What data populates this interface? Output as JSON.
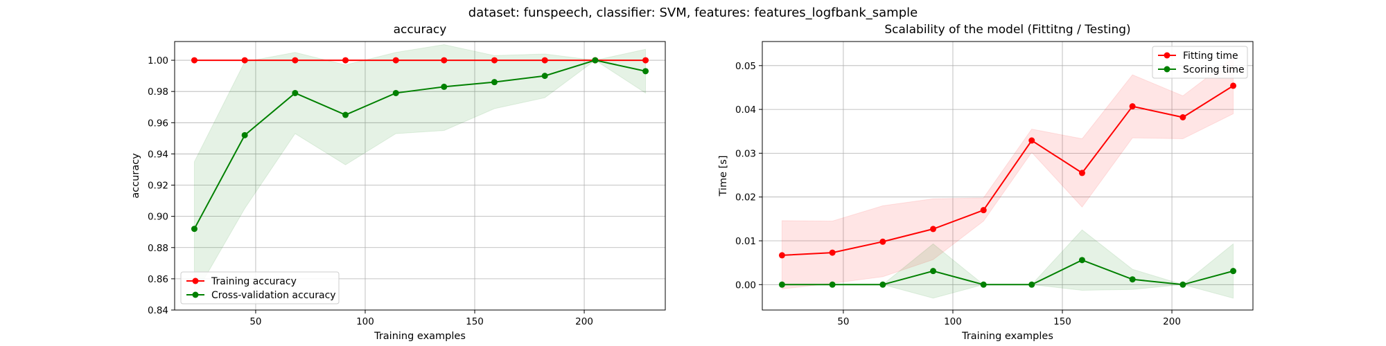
{
  "figure": {
    "suptitle": "dataset: funspeech, classifier: SVM, features: features_logfbank_sample"
  },
  "chart_data": [
    {
      "type": "line",
      "title": "accuracy",
      "xlabel": "Training examples",
      "ylabel": "accuracy",
      "xlim": [
        13,
        237
      ],
      "ylim": [
        0.84,
        1.012
      ],
      "xticks": [
        50,
        100,
        150,
        200
      ],
      "yticks": [
        0.84,
        0.86,
        0.88,
        0.9,
        0.92,
        0.94,
        0.96,
        0.98,
        1.0
      ],
      "ytick_labels": [
        "0.84",
        "0.86",
        "0.88",
        "0.90",
        "0.92",
        "0.94",
        "0.96",
        "0.98",
        "1.00"
      ],
      "grid": true,
      "legend_position": "lower-left",
      "x": [
        22,
        45,
        68,
        91,
        114,
        136,
        159,
        182,
        205,
        228
      ],
      "series": [
        {
          "name": "Training accuracy",
          "color": "#ff0000",
          "values": [
            1.0,
            1.0,
            1.0,
            1.0,
            1.0,
            1.0,
            1.0,
            1.0,
            1.0,
            1.0
          ],
          "band_low": [
            1.0,
            1.0,
            1.0,
            1.0,
            1.0,
            1.0,
            1.0,
            1.0,
            1.0,
            1.0
          ],
          "band_high": [
            1.0,
            1.0,
            1.0,
            1.0,
            1.0,
            1.0,
            1.0,
            1.0,
            1.0,
            1.0
          ],
          "band_color": "#ff0000"
        },
        {
          "name": "Cross-validation accuracy",
          "color": "#008000",
          "values": [
            0.892,
            0.952,
            0.979,
            0.965,
            0.979,
            0.983,
            0.986,
            0.99,
            1.0,
            0.993
          ],
          "band_low": [
            0.849,
            0.905,
            0.953,
            0.933,
            0.953,
            0.955,
            0.969,
            0.976,
            1.0,
            0.979
          ],
          "band_high": [
            0.935,
            0.999,
            1.005,
            0.997,
            1.005,
            1.01,
            1.003,
            1.004,
            1.0,
            1.007
          ],
          "band_color": "#008000"
        }
      ]
    },
    {
      "type": "line",
      "title": "Scalability of the model (Fittitng / Testing)",
      "xlabel": "Training examples",
      "ylabel": "Time [s]",
      "xlim": [
        13,
        237
      ],
      "ylim": [
        -0.0058,
        0.0555
      ],
      "xticks": [
        50,
        100,
        150,
        200
      ],
      "yticks": [
        0.0,
        0.01,
        0.02,
        0.03,
        0.04,
        0.05
      ],
      "ytick_labels": [
        "0.00",
        "0.01",
        "0.02",
        "0.03",
        "0.04",
        "0.05"
      ],
      "grid": true,
      "legend_position": "top-right",
      "x": [
        22,
        45,
        68,
        91,
        114,
        136,
        159,
        182,
        205,
        228
      ],
      "series": [
        {
          "name": "Fitting time",
          "color": "#ff0000",
          "values": [
            0.0067,
            0.0073,
            0.0098,
            0.0127,
            0.017,
            0.0329,
            0.0255,
            0.0407,
            0.0382,
            0.0454
          ],
          "band_low": [
            -0.001,
            0.0003,
            0.0018,
            0.0057,
            0.0145,
            0.0302,
            0.0177,
            0.0335,
            0.0333,
            0.039
          ],
          "band_high": [
            0.0146,
            0.0145,
            0.018,
            0.0196,
            0.0198,
            0.0355,
            0.0333,
            0.0479,
            0.0431,
            0.0518
          ],
          "band_color": "#ff0000"
        },
        {
          "name": "Scoring time",
          "color": "#008000",
          "values": [
            0.0,
            0.0,
            0.0,
            0.0031,
            0.0,
            0.0,
            0.0056,
            0.0012,
            0.0,
            0.0031
          ],
          "band_low": [
            0.0,
            0.0,
            0.0,
            -0.0031,
            0.0,
            0.0,
            -0.0013,
            -0.0011,
            0.0,
            -0.0031
          ],
          "band_high": [
            0.0,
            0.0,
            0.0,
            0.0093,
            0.0,
            0.0,
            0.0125,
            0.0035,
            0.0,
            0.0093
          ],
          "band_color": "#008000"
        }
      ]
    }
  ]
}
